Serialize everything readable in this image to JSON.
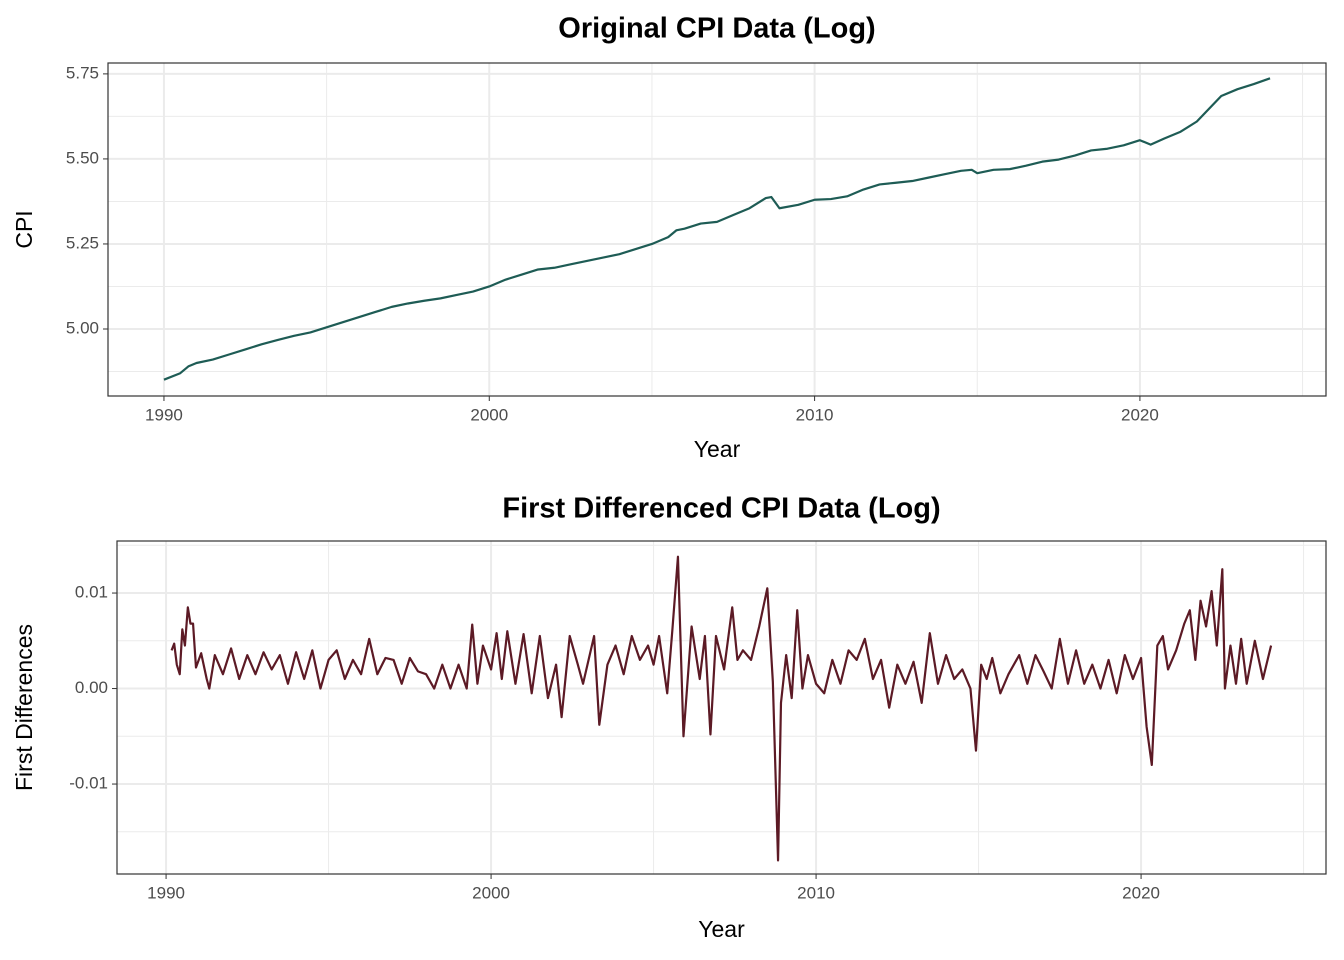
{
  "chart_data": [
    {
      "type": "line",
      "title": "Original CPI Data (Log)",
      "xlabel": "Year",
      "ylabel": "CPI",
      "xlim": [
        1988.28,
        2025.72
      ],
      "ylim": [
        4.803,
        5.782
      ],
      "xticks": [
        1990,
        2000,
        2010,
        2020
      ],
      "minor_xticks": [
        1995,
        2005,
        2015,
        2025
      ],
      "yticks": [
        {
          "value": 5,
          "label": "5.00"
        },
        5.25,
        {
          "value": 5.5,
          "label": "5.50"
        },
        5.75
      ],
      "minor_yticks": [
        4.875,
        5.125,
        5.375,
        5.625
      ],
      "grid": true,
      "color": "#1e5c55",
      "x": [
        1990,
        1990.5,
        1990.75,
        1991,
        1991.5,
        1992,
        1992.5,
        1993,
        1993.5,
        1994,
        1994.5,
        1995,
        1995.5,
        1996,
        1996.5,
        1997,
        1997.5,
        1998,
        1998.5,
        1999,
        1999.5,
        2000,
        2000.5,
        2001,
        2001.5,
        2002,
        2002.5,
        2003,
        2003.5,
        2004,
        2004.5,
        2005,
        2005.5,
        2005.75,
        2006,
        2006.5,
        2007,
        2007.5,
        2008,
        2008.5,
        2008.67,
        2008.92,
        2009.5,
        2010,
        2010.5,
        2011,
        2011.5,
        2012,
        2012.5,
        2013,
        2013.5,
        2014,
        2014.5,
        2014.83,
        2015,
        2015.5,
        2016,
        2016.5,
        2017,
        2017.5,
        2018,
        2018.5,
        2019,
        2019.5,
        2020,
        2020.33,
        2020.75,
        2021.25,
        2021.75,
        2022.25,
        2022.5,
        2023,
        2023.5,
        2024
      ],
      "values": [
        4.851,
        4.87,
        4.89,
        4.9,
        4.91,
        4.925,
        4.94,
        4.955,
        4.968,
        4.98,
        4.99,
        5.005,
        5.02,
        5.035,
        5.05,
        5.065,
        5.075,
        5.083,
        5.09,
        5.1,
        5.11,
        5.125,
        5.145,
        5.16,
        5.175,
        5.18,
        5.19,
        5.2,
        5.21,
        5.22,
        5.235,
        5.25,
        5.27,
        5.29,
        5.295,
        5.31,
        5.315,
        5.335,
        5.355,
        5.385,
        5.388,
        5.355,
        5.365,
        5.38,
        5.382,
        5.39,
        5.41,
        5.425,
        5.43,
        5.435,
        5.445,
        5.455,
        5.465,
        5.468,
        5.458,
        5.468,
        5.47,
        5.48,
        5.492,
        5.498,
        5.51,
        5.525,
        5.53,
        5.54,
        5.555,
        5.542,
        5.56,
        5.58,
        5.61,
        5.66,
        5.685,
        5.705,
        5.72,
        5.737
      ]
    },
    {
      "type": "line",
      "title": "First Differenced CPI Data (Log)",
      "xlabel": "Year",
      "ylabel": "First Differences",
      "xlim": [
        1988.49,
        2025.69
      ],
      "ylim": [
        -0.01942,
        0.01545
      ],
      "xticks": [
        1990,
        2000,
        2010,
        2020
      ],
      "minor_xticks": [
        1995,
        2005,
        2015,
        2025
      ],
      "yticks": [
        -0.01,
        {
          "value": 0,
          "label": "0.00"
        },
        0.01
      ],
      "minor_yticks": [
        -0.015,
        -0.005,
        0.005,
        0.015
      ],
      "grid": true,
      "color": "#5c1a25",
      "x": [
        1990.17,
        1990.25,
        1990.33,
        1990.42,
        1990.5,
        1990.58,
        1990.67,
        1990.75,
        1990.83,
        1990.92,
        1991.08,
        1991.25,
        1991.33,
        1991.5,
        1991.75,
        1992,
        1992.25,
        1992.5,
        1992.75,
        1993,
        1993.25,
        1993.5,
        1993.75,
        1994,
        1994.25,
        1994.5,
        1994.75,
        1995,
        1995.25,
        1995.5,
        1995.75,
        1996,
        1996.25,
        1996.5,
        1996.75,
        1997,
        1997.25,
        1997.5,
        1997.75,
        1998,
        1998.25,
        1998.5,
        1998.75,
        1999,
        1999.25,
        1999.42,
        1999.58,
        1999.75,
        2000,
        2000.17,
        2000.33,
        2000.5,
        2000.75,
        2001,
        2001.25,
        2001.5,
        2001.75,
        2002,
        2002.17,
        2002.42,
        2002.67,
        2002.83,
        2003.17,
        2003.33,
        2003.58,
        2003.83,
        2004.08,
        2004.33,
        2004.58,
        2004.83,
        2005,
        2005.17,
        2005.42,
        2005.58,
        2005.75,
        2005.92,
        2006.17,
        2006.42,
        2006.58,
        2006.75,
        2006.92,
        2007.17,
        2007.42,
        2007.58,
        2007.75,
        2008,
        2008.25,
        2008.5,
        2008.67,
        2008.83,
        2008.92,
        2009.08,
        2009.25,
        2009.42,
        2009.58,
        2009.75,
        2010,
        2010.25,
        2010.5,
        2010.75,
        2011,
        2011.25,
        2011.5,
        2011.75,
        2012,
        2012.25,
        2012.5,
        2012.75,
        2013,
        2013.25,
        2013.5,
        2013.75,
        2014,
        2014.25,
        2014.5,
        2014.75,
        2014.92,
        2015.08,
        2015.25,
        2015.42,
        2015.67,
        2015.92,
        2016.25,
        2016.5,
        2016.75,
        2017,
        2017.25,
        2017.5,
        2017.75,
        2018,
        2018.25,
        2018.5,
        2018.75,
        2019,
        2019.25,
        2019.5,
        2019.75,
        2020,
        2020.17,
        2020.33,
        2020.5,
        2020.67,
        2020.83,
        2021.08,
        2021.33,
        2021.5,
        2021.67,
        2021.83,
        2022,
        2022.17,
        2022.33,
        2022.5,
        2022.58,
        2022.75,
        2022.92,
        2023.08,
        2023.25,
        2023.5,
        2023.75,
        2024
      ],
      "values": [
        0.004,
        0.0047,
        0.0025,
        0.0015,
        0.0062,
        0.0045,
        0.0085,
        0.0068,
        0.0068,
        0.0022,
        0.0037,
        0.001,
        0,
        0.0035,
        0.0015,
        0.0042,
        0.001,
        0.0035,
        0.0015,
        0.0038,
        0.002,
        0.0035,
        0.0005,
        0.0038,
        0.001,
        0.004,
        0,
        0.003,
        0.004,
        0.001,
        0.003,
        0.0015,
        0.0052,
        0.0015,
        0.0032,
        0.003,
        0.0005,
        0.0032,
        0.0018,
        0.0015,
        0,
        0.0025,
        0,
        0.0025,
        0,
        0.0067,
        0.0005,
        0.0045,
        0.002,
        0.0058,
        0.001,
        0.006,
        0.0005,
        0.0057,
        -0.0005,
        0.0055,
        -0.001,
        0.0025,
        -0.003,
        0.0055,
        0.0025,
        0.0005,
        0.0055,
        -0.0038,
        0.0025,
        0.0045,
        0.0015,
        0.0055,
        0.003,
        0.0045,
        0.0025,
        0.0055,
        -0.0005,
        0.0062,
        0.0138,
        -0.005,
        0.0065,
        0.001,
        0.0055,
        -0.0048,
        0.0055,
        0.002,
        0.0085,
        0.003,
        0.004,
        0.003,
        0.0065,
        0.0105,
        0.0007,
        -0.018,
        -0.0015,
        0.0035,
        -0.001,
        0.0082,
        0,
        0.0035,
        0.0005,
        -0.0005,
        0.003,
        0.0005,
        0.004,
        0.003,
        0.0052,
        0.001,
        0.003,
        -0.002,
        0.0025,
        0.0005,
        0.0028,
        -0.0015,
        0.0058,
        0.0005,
        0.0035,
        0.001,
        0.002,
        0,
        -0.0065,
        0.0025,
        0.001,
        0.0032,
        -0.0005,
        0.0015,
        0.0035,
        0.0005,
        0.0035,
        0.0018,
        0,
        0.0052,
        0.0005,
        0.004,
        0.0005,
        0.0025,
        0,
        0.003,
        -0.0005,
        0.0035,
        0.001,
        0.0032,
        -0.004,
        -0.008,
        0.0045,
        0.0055,
        0.002,
        0.004,
        0.0068,
        0.0082,
        0.003,
        0.0092,
        0.0065,
        0.0102,
        0.0045,
        0.0125,
        0,
        0.0045,
        0.0005,
        0.0052,
        0.0005,
        0.005,
        0.001,
        0.0045
      ]
    }
  ]
}
